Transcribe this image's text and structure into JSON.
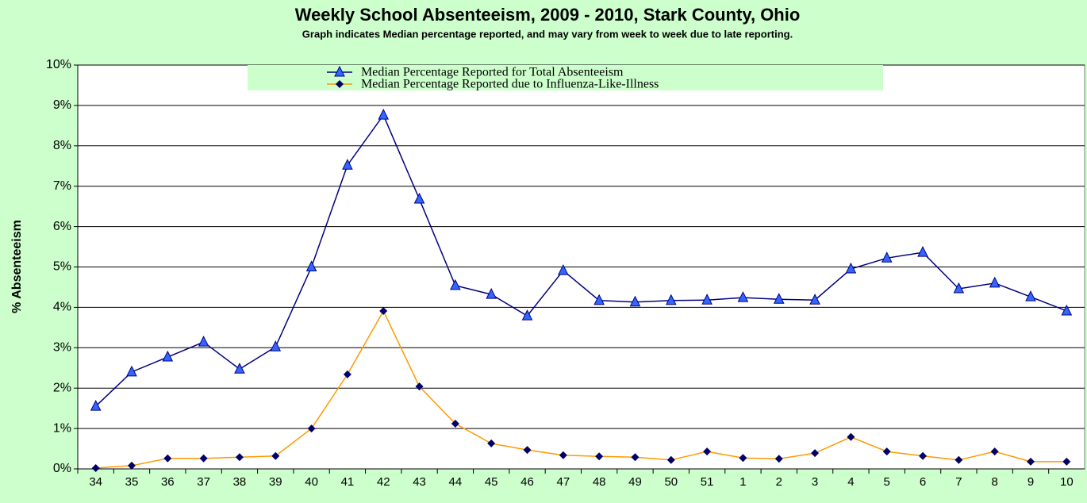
{
  "chart_data": {
    "type": "line",
    "title": "Weekly School Absenteeism, 2009 - 2010, Stark County, Ohio",
    "subtitle": "Graph indicates Median percentage reported, and may vary from week to week due to late reporting.",
    "y_label": "% Absenteeism",
    "categories": [
      "34",
      "35",
      "36",
      "37",
      "38",
      "39",
      "40",
      "41",
      "42",
      "43",
      "44",
      "45",
      "46",
      "47",
      "48",
      "49",
      "50",
      "51",
      "1",
      "2",
      "3",
      "4",
      "5",
      "6",
      "7",
      "8",
      "9",
      "10"
    ],
    "series": [
      {
        "name": "Median Percentage Reported for Total Absenteeism",
        "color": "#000080",
        "marker": "triangle",
        "marker_color": "#3366ff",
        "values": [
          1.55,
          2.4,
          2.77,
          3.14,
          2.47,
          3.02,
          5.0,
          7.52,
          8.76,
          6.68,
          4.54,
          4.32,
          3.79,
          4.91,
          4.17,
          4.13,
          4.17,
          4.18,
          4.24,
          4.2,
          4.18,
          4.95,
          5.22,
          5.36,
          4.46,
          4.6,
          4.26,
          3.91
        ]
      },
      {
        "name": "Median Percentage Reported due to Influenza-Like-Illness",
        "color": "#ff9900",
        "marker": "diamond",
        "marker_color": "#000066",
        "values": [
          0.02,
          0.08,
          0.26,
          0.26,
          0.29,
          0.32,
          1.0,
          2.34,
          3.91,
          2.04,
          1.12,
          0.63,
          0.47,
          0.34,
          0.31,
          0.29,
          0.22,
          0.43,
          0.27,
          0.25,
          0.39,
          0.79,
          0.43,
          0.32,
          0.22,
          0.43,
          0.18,
          0.18
        ]
      }
    ],
    "ylim": [
      0,
      10
    ],
    "yticks": [
      {
        "value": 0,
        "label": "0%"
      },
      {
        "value": 1,
        "label": "1%"
      },
      {
        "value": 2,
        "label": "2%"
      },
      {
        "value": 3,
        "label": "3%"
      },
      {
        "value": 4,
        "label": "4%"
      },
      {
        "value": 5,
        "label": "5%"
      },
      {
        "value": 6,
        "label": "6%"
      },
      {
        "value": 7,
        "label": "7%"
      },
      {
        "value": 8,
        "label": "8%"
      },
      {
        "value": 9,
        "label": "9%"
      },
      {
        "value": 10,
        "label": "10%"
      }
    ],
    "grid": true,
    "legend": "top"
  }
}
